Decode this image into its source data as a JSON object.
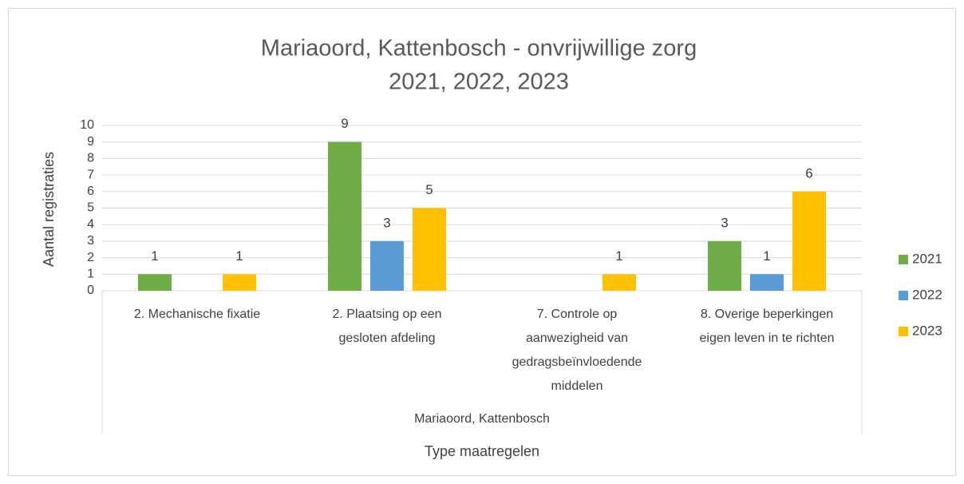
{
  "chart_data": {
    "type": "bar",
    "title": [
      "Mariaoord, Kattenbosch - onvrijwillige zorg",
      "2021, 2022, 2023"
    ],
    "categories": [
      "2. Mechanische fixatie",
      "2. Plaatsing op een gesloten afdeling",
      "7. Controle op aanwezigheid van gedragsbeïnvloedende middelen",
      "8. Overige beperkingen eigen leven in te richten"
    ],
    "category_group": "Mariaoord, Kattenbosch",
    "x_label": "Type maatregelen",
    "y_label": "Aantal registraties",
    "series": [
      {
        "name": "2021",
        "color": "#70ad47",
        "values": [
          1,
          9,
          null,
          3
        ]
      },
      {
        "name": "2022",
        "color": "#5b9bd5",
        "values": [
          null,
          3,
          null,
          1
        ]
      },
      {
        "name": "2023",
        "color": "#ffc000",
        "values": [
          1,
          5,
          1,
          6
        ]
      }
    ],
    "ylim": [
      0,
      10
    ],
    "yticks": [
      0,
      1,
      2,
      3,
      4,
      5,
      6,
      7,
      8,
      9,
      10
    ],
    "grid": true,
    "legend": "right"
  }
}
